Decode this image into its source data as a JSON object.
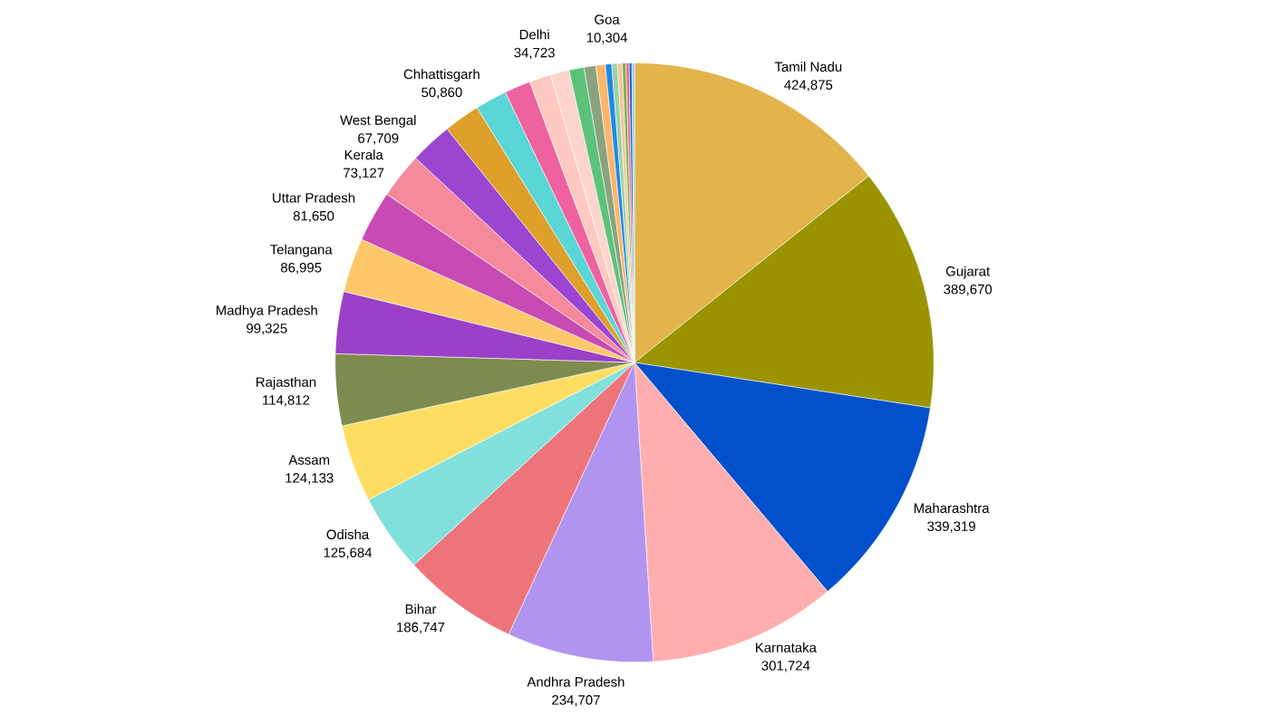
{
  "chart_data": {
    "type": "pie",
    "categories": [
      "Tamil Nadu",
      "Gujarat",
      "Maharashtra",
      "Karnataka",
      "Andhra Pradesh",
      "Bihar",
      "Odisha",
      "Assam",
      "Rajasthan",
      "Madhya Pradesh",
      "Telangana",
      "Uttar Pradesh",
      "Kerala",
      "West Bengal",
      null,
      "Chhattisgarh",
      null,
      "Delhi",
      null,
      null,
      null,
      null,
      "Goa",
      null,
      null,
      null,
      null,
      null,
      null
    ],
    "values": [
      424875,
      389670,
      339319,
      301724,
      234707,
      186747,
      125684,
      124133,
      114812,
      99325,
      86995,
      81650,
      73127,
      67709,
      58000,
      50860,
      42000,
      34723,
      30000,
      24000,
      19000,
      15000,
      10304,
      9000,
      7500,
      6000,
      5000,
      4500,
      4000
    ],
    "value_labels": [
      "424,875",
      "389,670",
      "339,319",
      "301,724",
      "234,707",
      "186,747",
      "125,684",
      "124,133",
      "114,812",
      "99,325",
      "86,995",
      "81,650",
      "73,127",
      "67,709",
      null,
      "50,860",
      null,
      "34,723",
      null,
      null,
      null,
      null,
      "10,304",
      null,
      null,
      null,
      null,
      null,
      null
    ],
    "colors": [
      "#e3b44b",
      "#999400",
      "#0050cc",
      "#feaeae",
      "#b094f0",
      "#ee747c",
      "#82e0dd",
      "#fede62",
      "#7d8b4e",
      "#9b40c8",
      "#fec86a",
      "#c84bb5",
      "#f58a9c",
      "#9a46d0",
      "#dda02a",
      "#5ad6d6",
      "#ee62a0",
      "#fec9c0",
      "#fdd5cc",
      "#5cc27a",
      "#8aa37f",
      "#feb66b",
      "#1e88e5",
      "#99d3a4",
      "#f0c8a0",
      "#7cb342",
      "#f06292",
      "#1565c0",
      "#90caf9"
    ]
  }
}
